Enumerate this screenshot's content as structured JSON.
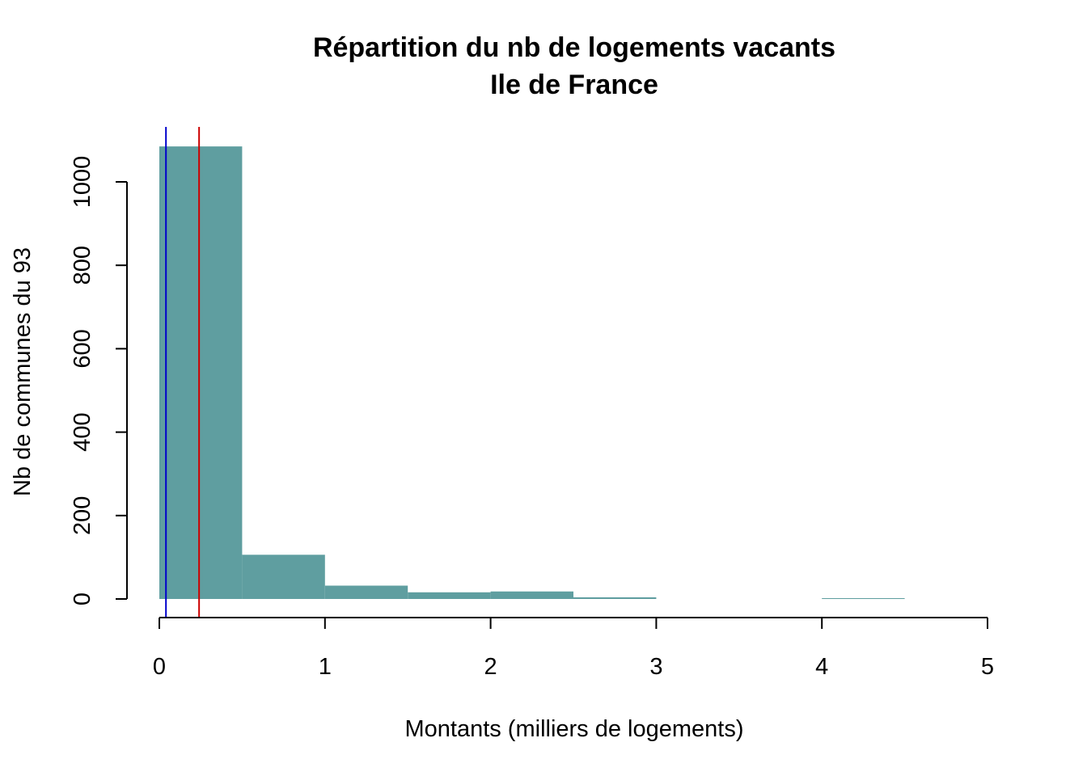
{
  "chart_data": {
    "type": "bar",
    "title": "Répartition du nb de logements vacants",
    "subtitle": "Ile de France",
    "xlabel": "Montants (milliers de logements)",
    "ylabel": "Nb de communes du 93",
    "bin_edges": [
      0,
      0.5,
      1,
      1.5,
      2,
      2.5,
      3,
      3.5,
      4,
      4.5
    ],
    "values": [
      1085,
      106,
      32,
      16,
      18,
      4,
      0,
      0,
      2
    ],
    "xlim": [
      0,
      5
    ],
    "ylim": [
      0,
      1100
    ],
    "x_ticks": [
      0,
      1,
      2,
      3,
      4,
      5
    ],
    "y_ticks": [
      0,
      200,
      400,
      600,
      800,
      1000
    ],
    "reference_lines": [
      {
        "x": 0.04,
        "color": "#0000CC"
      },
      {
        "x": 0.24,
        "color": "#CC0000"
      }
    ],
    "bar_color": "#5F9EA0",
    "grid": false,
    "legend": "none"
  }
}
